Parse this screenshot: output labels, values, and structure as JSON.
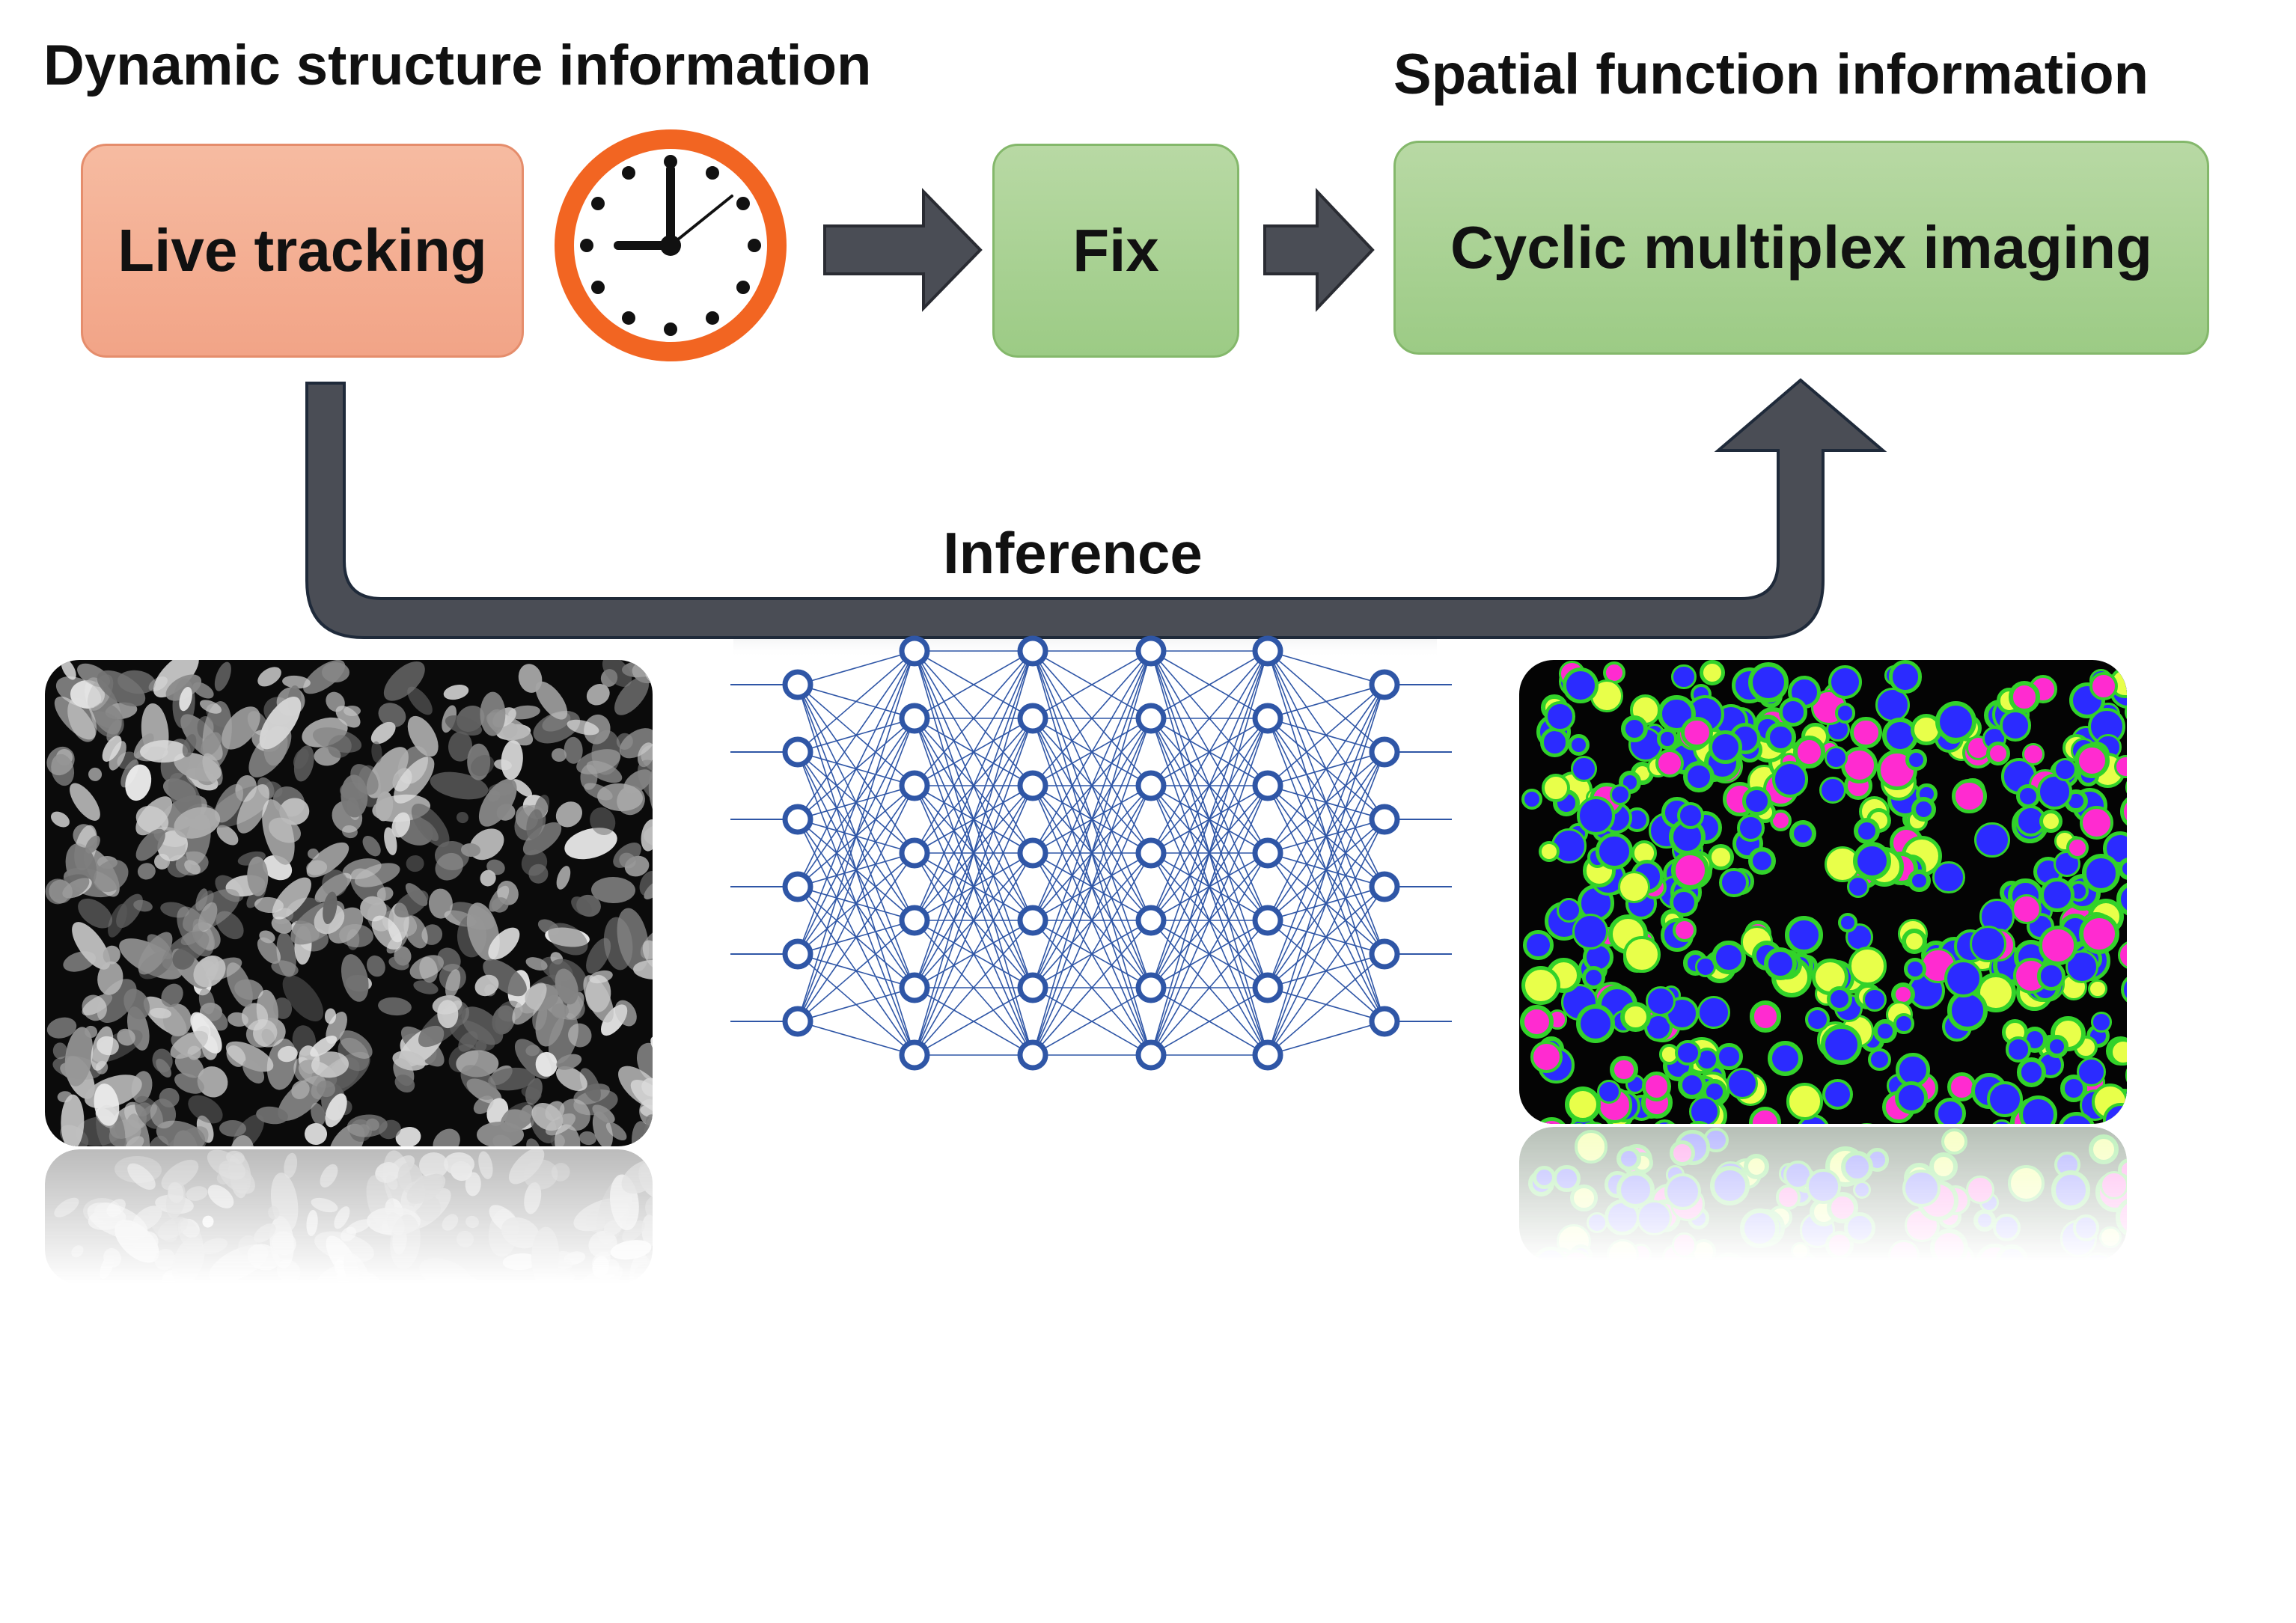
{
  "headings": {
    "left": "Dynamic structure information",
    "right": "Spatial function information"
  },
  "boxes": {
    "live_tracking": "Live tracking",
    "fix": "Fix",
    "cyclic_imaging": "Cyclic multiplex imaging"
  },
  "inference_label": "Inference",
  "neural_network": {
    "layers": [
      6,
      7,
      7,
      7,
      7,
      6
    ],
    "node_color": "#2f56a6",
    "edge_color": "#2f56a6"
  },
  "colors": {
    "live_box": "#f2a487",
    "green_box": "#9ccb85",
    "arrow": "#4a4d55",
    "clock_ring": "#f26522"
  },
  "icons": {
    "clock": "clock-icon",
    "neural_network": "neural-network-icon"
  }
}
